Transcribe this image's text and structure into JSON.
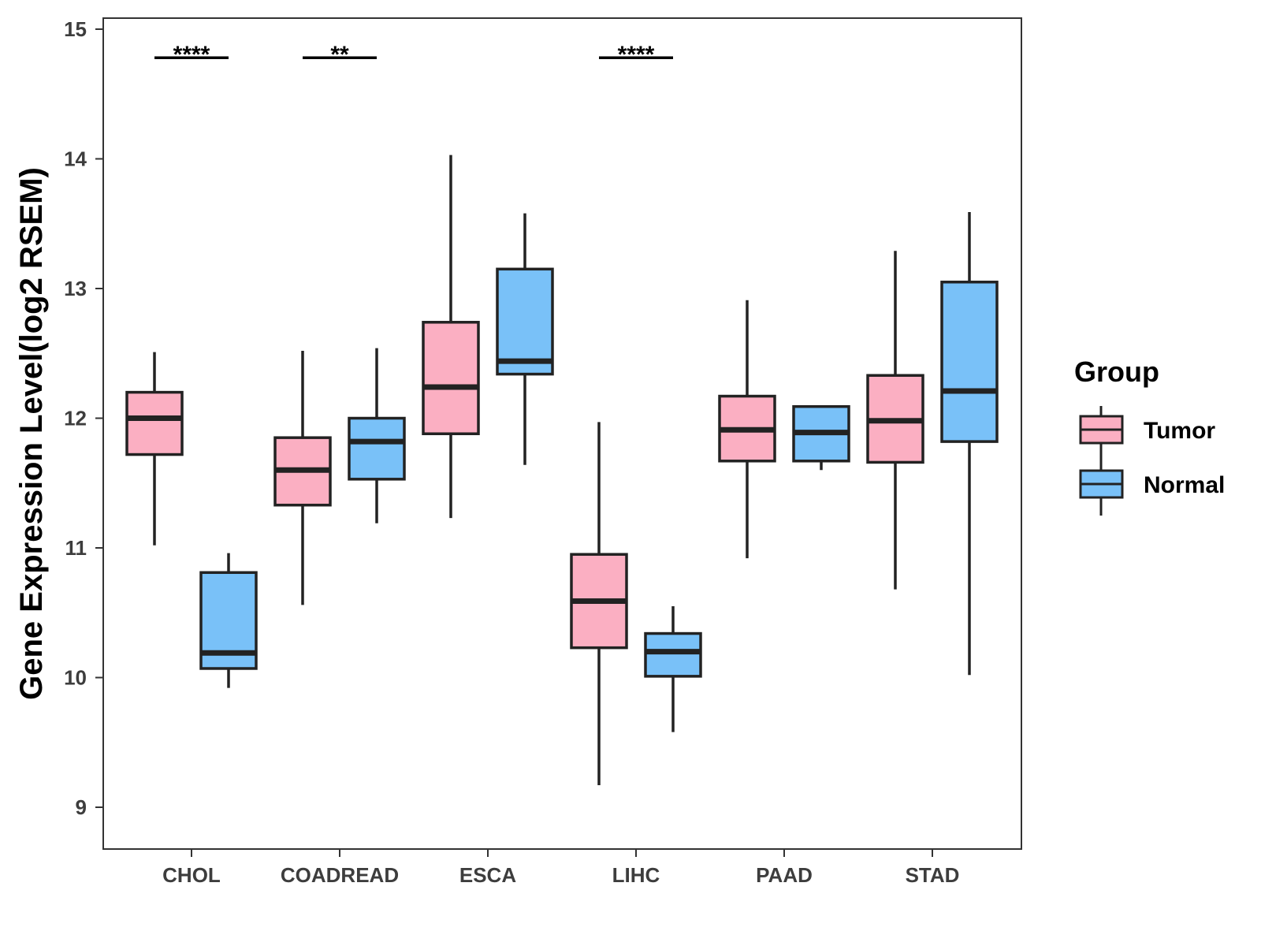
{
  "chart_data": {
    "type": "boxplot",
    "title": "",
    "xlabel": "",
    "ylabel": "Gene Expression Level(log2 RSEM)",
    "ylim": [
      8.7,
      15.1
    ],
    "yticks": [
      9,
      10,
      11,
      12,
      13,
      14,
      15
    ],
    "grid": false,
    "legend": {
      "title": "Group",
      "position": "right",
      "entries": [
        {
          "name": "Tumor",
          "color": "#fbafc2"
        },
        {
          "name": "Normal",
          "color": "#79c1f8"
        }
      ]
    },
    "categories": [
      "CHOL",
      "COADREAD",
      "ESCA",
      "LIHC",
      "PAAD",
      "STAD"
    ],
    "series": [
      {
        "name": "Tumor",
        "color": "#fbafc2",
        "boxes": [
          {
            "low": 11.02,
            "q1": 11.72,
            "median": 12.0,
            "q3": 12.2,
            "high": 12.51
          },
          {
            "low": 10.56,
            "q1": 11.33,
            "median": 11.6,
            "q3": 11.85,
            "high": 12.52
          },
          {
            "low": 11.23,
            "q1": 11.88,
            "median": 12.24,
            "q3": 12.74,
            "high": 14.03
          },
          {
            "low": 9.17,
            "q1": 10.23,
            "median": 10.59,
            "q3": 10.95,
            "high": 11.97
          },
          {
            "low": 10.92,
            "q1": 11.67,
            "median": 11.91,
            "q3": 12.17,
            "high": 12.91
          },
          {
            "low": 10.68,
            "q1": 11.66,
            "median": 11.98,
            "q3": 12.33,
            "high": 13.29
          }
        ]
      },
      {
        "name": "Normal",
        "color": "#79c1f8",
        "boxes": [
          {
            "low": 9.92,
            "q1": 10.07,
            "median": 10.19,
            "q3": 10.81,
            "high": 10.96
          },
          {
            "low": 11.19,
            "q1": 11.53,
            "median": 11.82,
            "q3": 12.0,
            "high": 12.54
          },
          {
            "low": 11.64,
            "q1": 12.34,
            "median": 12.44,
            "q3": 13.15,
            "high": 13.58
          },
          {
            "low": 9.58,
            "q1": 10.01,
            "median": 10.2,
            "q3": 10.34,
            "high": 10.55
          },
          {
            "low": 11.6,
            "q1": 11.67,
            "median": 11.89,
            "q3": 12.09,
            "high": 12.1
          },
          {
            "low": 10.02,
            "q1": 11.82,
            "median": 12.21,
            "q3": 13.05,
            "high": 13.59
          }
        ]
      }
    ],
    "annotations": [
      {
        "category": "CHOL",
        "label": "****",
        "y": 14.78
      },
      {
        "category": "COADREAD",
        "label": "**",
        "y": 14.78
      },
      {
        "category": "LIHC",
        "label": "****",
        "y": 14.78
      }
    ]
  }
}
